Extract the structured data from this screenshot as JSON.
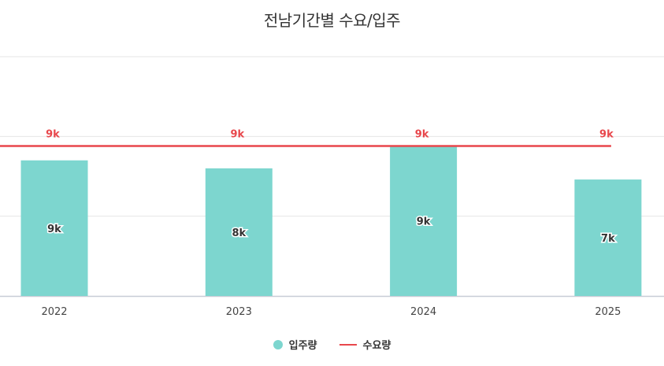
{
  "chart_data": {
    "type": "bar",
    "title": "전남기간별 수요/입주",
    "categories": [
      "2022",
      "2023",
      "2024",
      "2025"
    ],
    "series": [
      {
        "name": "입주량",
        "kind": "bar",
        "values": [
          8500,
          8000,
          9400,
          7300
        ],
        "labels": [
          "9k",
          "8k",
          "9k",
          "7k"
        ],
        "color": "#7dd6cf"
      },
      {
        "name": "수요량",
        "kind": "line",
        "values": [
          9400,
          9400,
          9400,
          9400
        ],
        "labels": [
          "9k",
          "9k",
          "9k",
          "9k"
        ],
        "color": "#e8474c"
      }
    ],
    "ylim": [
      0,
      15000
    ],
    "y_gridlines": [
      0,
      5000,
      10000,
      15000
    ],
    "grid": true,
    "legend_position": "bottom"
  }
}
